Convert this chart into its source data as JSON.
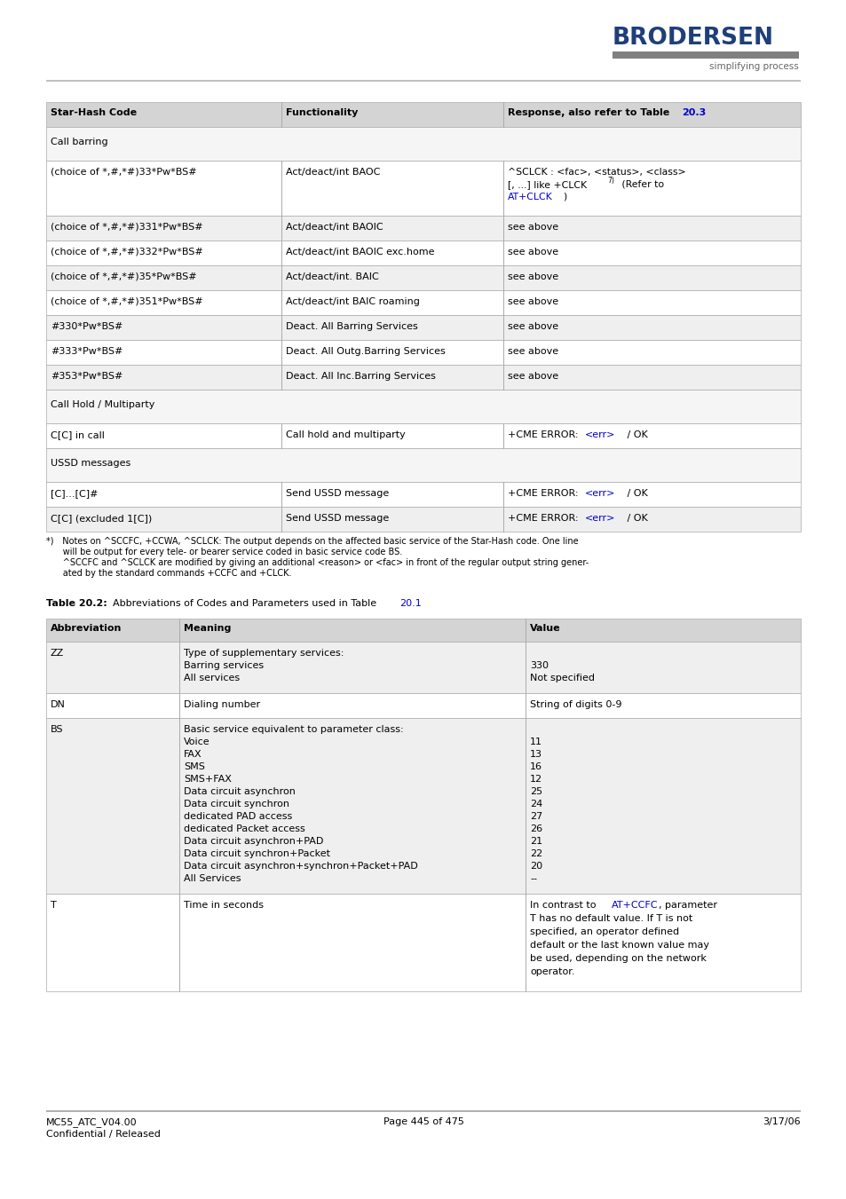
{
  "page_bg": "#ffffff",
  "header_logo_color": "#1f3f7a",
  "header_tagline": "simplifying process",
  "header_bar_color": "#808080",
  "link_color": "#0000cc",
  "text_color": "#000000",
  "table_header_bg": "#d4d4d4",
  "table_alt_bg": "#efefef",
  "table_white_bg": "#ffffff",
  "table_border": "#aaaaaa",
  "footer_bar_color": "#b0b0b0",
  "footer_line1_left": "MC55_ATC_V04.00",
  "footer_line1_center": "Page 445 of 475",
  "footer_line1_right": "3/17/06",
  "footer_line2_left": "Confidential / Released"
}
